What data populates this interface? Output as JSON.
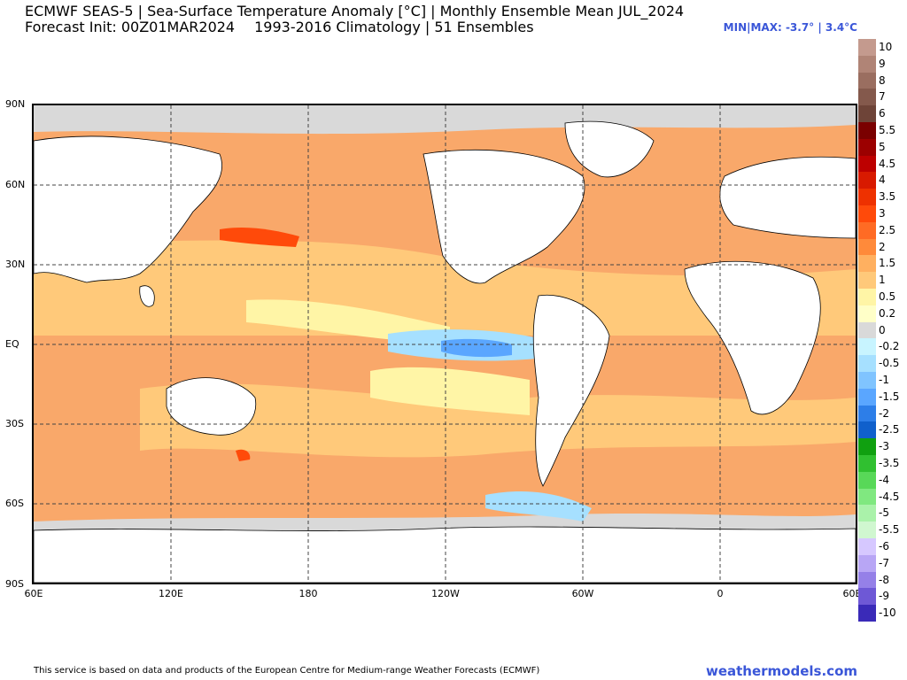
{
  "header": {
    "title_line1": "ECMWF SEAS-5 | Sea-Surface Temperature Anomaly [°C] | Monthly Ensemble Mean JUL_2024",
    "title_line2a": "Forecast Init: 00Z01MAR2024",
    "title_line2b": "1993-2016 Climatology | 51 Ensembles",
    "minmax": "MIN|MAX: -3.7° | 3.4°C"
  },
  "axes": {
    "y_labels": [
      "90N",
      "60N",
      "30N",
      "EQ",
      "30S",
      "60S",
      "90S"
    ],
    "x_labels": [
      "60E",
      "120E",
      "180",
      "120W",
      "60W",
      "0",
      "60E"
    ]
  },
  "legend": {
    "labels": [
      "10",
      "9",
      "8",
      "7",
      "6",
      "5.5",
      "5",
      "4.5",
      "4",
      "3.5",
      "3",
      "2.5",
      "2",
      "1.5",
      "1",
      "0.5",
      "0.2",
      "0",
      "-0.2",
      "-0.5",
      "-1",
      "-1.5",
      "-2",
      "-2.5",
      "-3",
      "-3.5",
      "-4",
      "-4.5",
      "-5",
      "-5.5",
      "-6",
      "-7",
      "-8",
      "-9",
      "-10"
    ],
    "colors": [
      "#c49a8e",
      "#b08476",
      "#9a6e60",
      "#84594c",
      "#6e4438",
      "#7a0000",
      "#9c0000",
      "#bd0000",
      "#d81a00",
      "#ee3100",
      "#ff4a0a",
      "#ff6b24",
      "#ff8a3a",
      "#ffb060",
      "#ffc97a",
      "#fff5a6",
      "#ffffc8",
      "#d9d9d9",
      "#c8f4ff",
      "#a6e0ff",
      "#80c4ff",
      "#5aa6ff",
      "#2d7ee8",
      "#1060cc",
      "#10a010",
      "#30c030",
      "#58d858",
      "#80e880",
      "#aaf2aa",
      "#d0f7d0",
      "#d6c8ff",
      "#b8a6f5",
      "#9580e8",
      "#6e58d6",
      "#3a2ab8"
    ]
  },
  "map_colors": {
    "ocean_warm": "#f9a86a",
    "ocean_mild": "#ffc97a",
    "ocean_slight": "#fff5a6",
    "neutral": "#d9d9d9",
    "cold_light": "#a6e0ff",
    "cold_mid": "#5aa6ff",
    "hot": "#ff4a0a",
    "land": "#ffffff"
  },
  "footer": {
    "credit": "This service is based on data and products of the European Centre for Medium-range Weather Forecasts (ECMWF)",
    "brand": "weathermodels.com"
  }
}
